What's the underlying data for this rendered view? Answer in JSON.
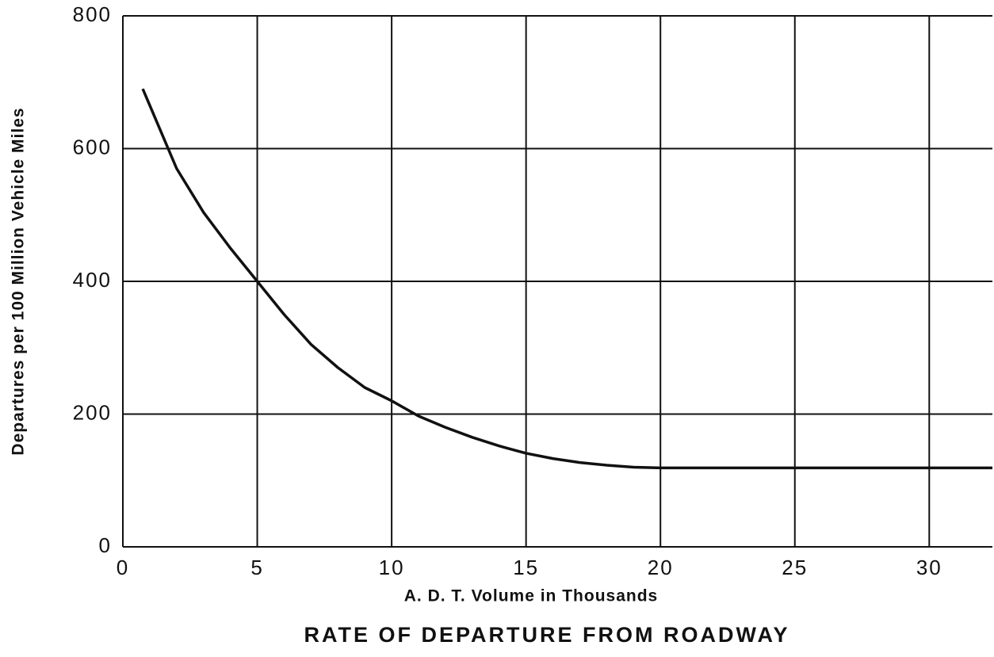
{
  "chart_data": {
    "type": "line",
    "title": "RATE OF DEPARTURE FROM ROADWAY",
    "x_label": "A. D. T. Volume in Thousands",
    "y_label": "Departures per 100 Million Vehicle Miles",
    "series": [
      {
        "name": "Departures",
        "color": "#111111",
        "x": [
          0.74,
          2,
          3,
          4,
          5,
          6,
          7,
          8,
          9,
          10,
          11,
          12,
          13,
          14,
          15,
          16,
          17,
          18,
          19,
          20,
          25,
          30,
          32.35
        ],
        "values": [
          690,
          570,
          504,
          450,
          400,
          350,
          305,
          270,
          240,
          220,
          197,
          180,
          165,
          152,
          141,
          133,
          127,
          123,
          120,
          119,
          119,
          119,
          119
        ]
      }
    ],
    "xlim": [
      0,
      32.35
    ],
    "ylim": [
      0,
      800
    ],
    "xticks": [
      0,
      5,
      10,
      15,
      20,
      25,
      30
    ],
    "yticks": [
      0,
      200,
      400,
      600,
      800
    ],
    "grid": true
  }
}
